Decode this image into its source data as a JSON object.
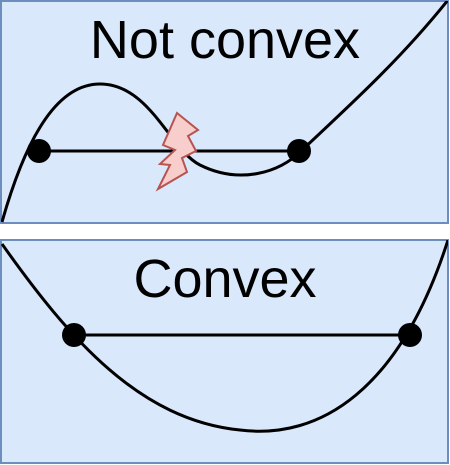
{
  "panels": [
    {
      "id": "not-convex",
      "title": "Not convex",
      "bg": "#dae8fc",
      "border": "#6c8ebf"
    },
    {
      "id": "convex",
      "title": "Convex",
      "bg": "#dae8fc",
      "border": "#6c8ebf"
    }
  ],
  "colors": {
    "curve": "#000000",
    "point": "#000000",
    "warning_fill": "#f8cecc",
    "warning_stroke": "#b85450"
  },
  "icons": {
    "violation": "lightning-icon"
  }
}
